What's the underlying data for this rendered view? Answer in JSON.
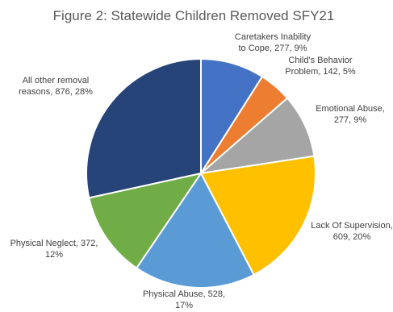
{
  "chart_data": {
    "type": "pie",
    "title": "Figure 2: Statewide Children Removed SFY21",
    "slices": [
      {
        "label": "Caretakers Inability to Cope",
        "value": 277,
        "percent": "9%",
        "color": "#4472c4",
        "label_lines": [
          "Caretakers Inability",
          "to Cope, 277, 9%"
        ]
      },
      {
        "label": "Child's Behavior Problem",
        "value": 142,
        "percent": "5%",
        "color": "#ed7d31",
        "label_lines": [
          "Child's Behavior",
          "Problem, 142, 5%"
        ]
      },
      {
        "label": "Emotional Abuse",
        "value": 277,
        "percent": "9%",
        "color": "#a5a5a5",
        "label_lines": [
          "Emotional Abuse,",
          "277, 9%"
        ]
      },
      {
        "label": "Lack Of Supervision",
        "value": 609,
        "percent": "20%",
        "color": "#ffc000",
        "label_lines": [
          "Lack Of Supervision,",
          "609, 20%"
        ]
      },
      {
        "label": "Physical Abuse",
        "value": 528,
        "percent": "17%",
        "color": "#5b9bd5",
        "label_lines": [
          "Physical Abuse, 528,",
          "17%"
        ]
      },
      {
        "label": "Physical Neglect",
        "value": 372,
        "percent": "12%",
        "color": "#70ad47",
        "label_lines": [
          "Physical Neglect, 372,",
          "12%"
        ]
      },
      {
        "label": "All other removal reasons",
        "value": 876,
        "percent": "28%",
        "color": "#264478",
        "label_lines": [
          "All other removal",
          "reasons, 876, 28%"
        ]
      }
    ]
  }
}
